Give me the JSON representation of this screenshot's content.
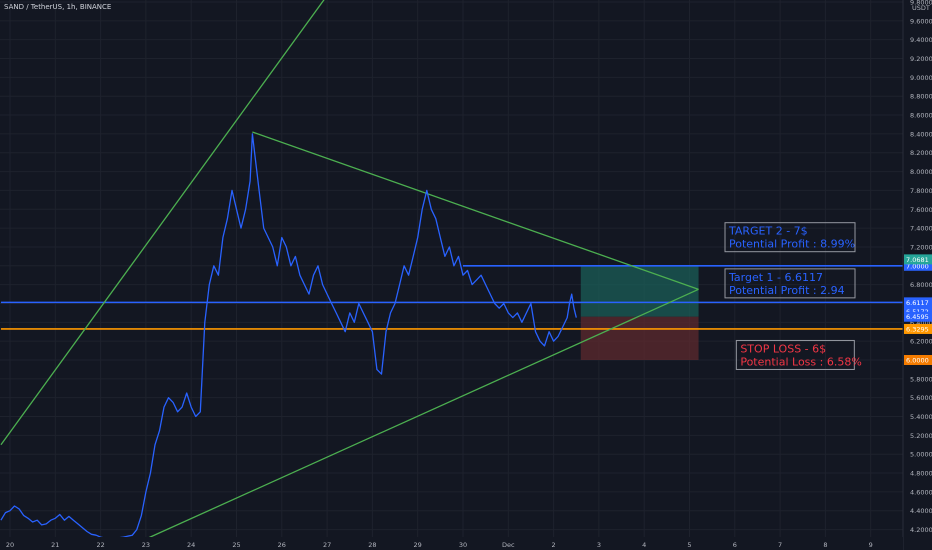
{
  "header": {
    "title": "SAND / TetherUS, 1h, BINANCE"
  },
  "axis": {
    "currency_label": "USDT"
  },
  "colors": {
    "background": "#131722",
    "grid": "#1e222d",
    "price_line": "#2962ff",
    "trend_line": "#4caf50",
    "level_blue": "#2962ff",
    "level_orange": "#ff9800",
    "profit_zone": "#1b5e57",
    "loss_zone": "#5d2a2e",
    "target_text": "#2962ff",
    "stop_text": "#f23645"
  },
  "chart_data": {
    "type": "line",
    "title": "SAND / TetherUS, 1h, BINANCE",
    "ylim": [
      4.1,
      9.8
    ],
    "y_ticks": [
      4.2,
      4.4,
      4.6,
      4.8,
      5.0,
      5.2,
      5.4,
      5.6,
      5.8,
      6.0,
      6.2,
      6.4,
      6.6,
      6.8,
      7.0,
      7.2,
      7.4,
      7.6,
      7.8,
      8.0,
      8.2,
      8.4,
      8.6,
      8.8,
      9.0,
      9.2,
      9.4,
      9.6,
      9.8
    ],
    "x_ticks": [
      {
        "label": "20",
        "x": 0
      },
      {
        "label": "21",
        "x": 1
      },
      {
        "label": "22",
        "x": 2
      },
      {
        "label": "23",
        "x": 3
      },
      {
        "label": "24",
        "x": 4
      },
      {
        "label": "25",
        "x": 5
      },
      {
        "label": "26",
        "x": 6
      },
      {
        "label": "27",
        "x": 7
      },
      {
        "label": "28",
        "x": 8
      },
      {
        "label": "29",
        "x": 9
      },
      {
        "label": "30",
        "x": 10
      },
      {
        "label": "Dec",
        "x": 11
      },
      {
        "label": "2",
        "x": 12
      },
      {
        "label": "3",
        "x": 13
      },
      {
        "label": "4",
        "x": 14
      },
      {
        "label": "5",
        "x": 15
      },
      {
        "label": "6",
        "x": 16
      },
      {
        "label": "7",
        "x": 17
      },
      {
        "label": "8",
        "x": 18
      },
      {
        "label": "9",
        "x": 19
      }
    ],
    "xlim": [
      -0.2,
      19.4
    ],
    "series": [
      {
        "values": [
          [
            -0.2,
            4.3
          ],
          [
            -0.1,
            4.38
          ],
          [
            0,
            4.4
          ],
          [
            0.1,
            4.45
          ],
          [
            0.2,
            4.42
          ],
          [
            0.3,
            4.35
          ],
          [
            0.4,
            4.32
          ],
          [
            0.5,
            4.28
          ],
          [
            0.6,
            4.3
          ],
          [
            0.7,
            4.25
          ],
          [
            0.8,
            4.26
          ],
          [
            0.9,
            4.3
          ],
          [
            1.0,
            4.32
          ],
          [
            1.1,
            4.36
          ],
          [
            1.2,
            4.3
          ],
          [
            1.3,
            4.34
          ],
          [
            1.4,
            4.3
          ],
          [
            1.5,
            4.26
          ],
          [
            1.6,
            4.22
          ],
          [
            1.7,
            4.18
          ],
          [
            1.8,
            4.15
          ],
          [
            1.9,
            4.14
          ],
          [
            2.0,
            4.12
          ],
          [
            2.2,
            4.1
          ],
          [
            2.5,
            4.12
          ],
          [
            2.7,
            4.14
          ],
          [
            2.8,
            4.2
          ],
          [
            2.9,
            4.35
          ],
          [
            3.0,
            4.6
          ],
          [
            3.1,
            4.8
          ],
          [
            3.2,
            5.1
          ],
          [
            3.3,
            5.25
          ],
          [
            3.4,
            5.5
          ],
          [
            3.5,
            5.6
          ],
          [
            3.6,
            5.55
          ],
          [
            3.7,
            5.45
          ],
          [
            3.8,
            5.5
          ],
          [
            3.9,
            5.65
          ],
          [
            4.0,
            5.5
          ],
          [
            4.1,
            5.4
          ],
          [
            4.2,
            5.45
          ],
          [
            4.3,
            6.4
          ],
          [
            4.4,
            6.8
          ],
          [
            4.5,
            7.0
          ],
          [
            4.6,
            6.9
          ],
          [
            4.7,
            7.3
          ],
          [
            4.8,
            7.5
          ],
          [
            4.9,
            7.8
          ],
          [
            5.0,
            7.6
          ],
          [
            5.1,
            7.4
          ],
          [
            5.2,
            7.6
          ],
          [
            5.3,
            7.9
          ],
          [
            5.35,
            8.4
          ],
          [
            5.4,
            8.2
          ],
          [
            5.5,
            7.8
          ],
          [
            5.6,
            7.4
          ],
          [
            5.7,
            7.3
          ],
          [
            5.8,
            7.2
          ],
          [
            5.9,
            7.0
          ],
          [
            6.0,
            7.3
          ],
          [
            6.1,
            7.2
          ],
          [
            6.2,
            7.0
          ],
          [
            6.3,
            7.1
          ],
          [
            6.4,
            6.9
          ],
          [
            6.5,
            6.8
          ],
          [
            6.6,
            6.7
          ],
          [
            6.7,
            6.9
          ],
          [
            6.8,
            7.0
          ],
          [
            6.9,
            6.8
          ],
          [
            7.0,
            6.7
          ],
          [
            7.1,
            6.6
          ],
          [
            7.2,
            6.5
          ],
          [
            7.3,
            6.4
          ],
          [
            7.4,
            6.3
          ],
          [
            7.5,
            6.5
          ],
          [
            7.6,
            6.4
          ],
          [
            7.7,
            6.6
          ],
          [
            7.8,
            6.5
          ],
          [
            7.9,
            6.4
          ],
          [
            8.0,
            6.3
          ],
          [
            8.1,
            5.9
          ],
          [
            8.2,
            5.85
          ],
          [
            8.3,
            6.3
          ],
          [
            8.4,
            6.5
          ],
          [
            8.5,
            6.6
          ],
          [
            8.6,
            6.8
          ],
          [
            8.7,
            7.0
          ],
          [
            8.8,
            6.9
          ],
          [
            8.9,
            7.1
          ],
          [
            9.0,
            7.3
          ],
          [
            9.1,
            7.6
          ],
          [
            9.2,
            7.8
          ],
          [
            9.3,
            7.6
          ],
          [
            9.4,
            7.5
          ],
          [
            9.5,
            7.3
          ],
          [
            9.6,
            7.1
          ],
          [
            9.7,
            7.2
          ],
          [
            9.8,
            7.0
          ],
          [
            9.9,
            7.1
          ],
          [
            10.0,
            6.9
          ],
          [
            10.1,
            6.95
          ],
          [
            10.2,
            6.8
          ],
          [
            10.3,
            6.85
          ],
          [
            10.4,
            6.9
          ],
          [
            10.5,
            6.8
          ],
          [
            10.6,
            6.7
          ],
          [
            10.7,
            6.6
          ],
          [
            10.8,
            6.55
          ],
          [
            10.9,
            6.6
          ],
          [
            11.0,
            6.5
          ],
          [
            11.1,
            6.45
          ],
          [
            11.2,
            6.5
          ],
          [
            11.3,
            6.4
          ],
          [
            11.4,
            6.5
          ],
          [
            11.5,
            6.6
          ],
          [
            11.6,
            6.3
          ],
          [
            11.7,
            6.2
          ],
          [
            11.8,
            6.15
          ],
          [
            11.9,
            6.3
          ],
          [
            12.0,
            6.2
          ],
          [
            12.1,
            6.25
          ],
          [
            12.2,
            6.35
          ],
          [
            12.3,
            6.45
          ],
          [
            12.35,
            6.6
          ],
          [
            12.4,
            6.7
          ],
          [
            12.45,
            6.55
          ],
          [
            12.5,
            6.45
          ]
        ]
      }
    ],
    "trend_lines": [
      {
        "from": [
          -0.2,
          5.1
        ],
        "to": [
          7.5,
          10.2
        ]
      },
      {
        "from": [
          5.35,
          8.42
        ],
        "to": [
          15.2,
          6.75
        ]
      },
      {
        "from": [
          3.0,
          4.1
        ],
        "to": [
          15.2,
          6.75
        ]
      }
    ],
    "levels": [
      {
        "price": 6.6117,
        "color_key": "level_blue",
        "tag": "6.6117",
        "tag_bg": "#2962ff",
        "from": -0.2
      },
      {
        "price": 6.3295,
        "color_key": "level_orange",
        "tag": "6.3295",
        "tag_bg": "#ff9800",
        "from": -0.2
      },
      {
        "price": 7.0,
        "color_key": "level_blue",
        "tag": "7.0000",
        "tag_bg": "#2962ff",
        "from": 10.0
      }
    ],
    "extra_tags": [
      {
        "price": 7.0681,
        "tag": "7.0681",
        "tag_bg": "#26a69a"
      },
      {
        "price": 6.5172,
        "tag": "6.5172",
        "tag_bg": "#2962ff"
      },
      {
        "price": 6.4595,
        "tag": "6.4595",
        "tag_bg": "#2962ff"
      },
      {
        "price": 6.0,
        "tag": "6.0000",
        "tag_bg": "#f57c00"
      }
    ],
    "zones": [
      {
        "kind": "profit",
        "x0": 12.6,
        "x1": 15.2,
        "y0": 6.4595,
        "y1": 7.0
      },
      {
        "kind": "loss",
        "x0": 12.6,
        "x1": 15.2,
        "y0": 6.0,
        "y1": 6.4595
      }
    ],
    "annotations": [
      {
        "id": "target2",
        "lines": [
          "TARGET 2  - 7$",
          "Potential Profit  : 8.99%"
        ],
        "x": 15.85,
        "y": 7.33,
        "color_key": "target_text"
      },
      {
        "id": "target1",
        "lines": [
          "Target 1 - 6.6117",
          "Potential Profit : 2.94"
        ],
        "x": 15.85,
        "y": 6.84,
        "color_key": "target_text"
      },
      {
        "id": "stoploss",
        "lines": [
          "STOP LOSS - 6$",
          "Potential Loss : 6.58%"
        ],
        "x": 16.1,
        "y": 6.08,
        "color_key": "stop_text"
      }
    ]
  }
}
